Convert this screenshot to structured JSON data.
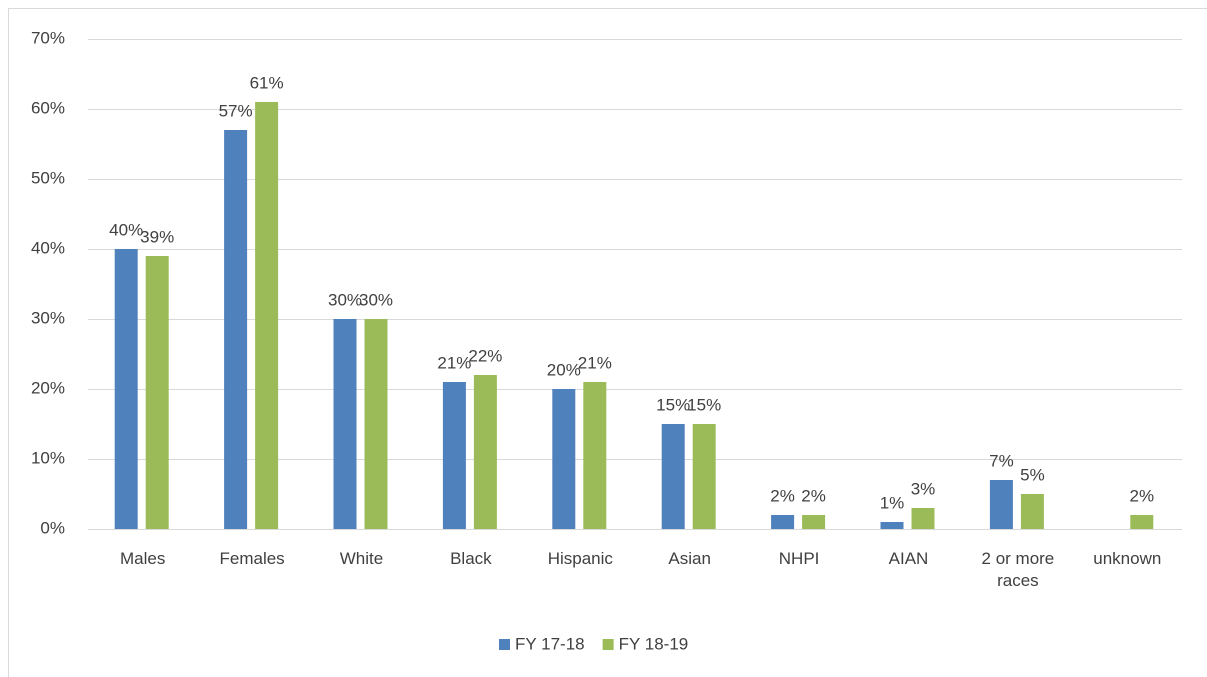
{
  "chart_data": {
    "type": "bar",
    "categories": [
      "Males",
      "Females",
      "White",
      "Black",
      "Hispanic",
      "Asian",
      "NHPI",
      "AIAN",
      "2 or more races",
      "unknown"
    ],
    "series": [
      {
        "name": "FY 17-18",
        "color": "#4f81bd",
        "values": [
          40,
          57,
          30,
          21,
          20,
          15,
          2,
          1,
          7,
          null
        ],
        "value_labels": [
          "40%",
          "57%",
          "30%",
          "21%",
          "20%",
          "15%",
          "2%",
          "1%",
          "7%",
          null
        ]
      },
      {
        "name": "FY 18-19",
        "color": "#9bbb59",
        "values": [
          39,
          61,
          30,
          22,
          21,
          15,
          2,
          3,
          5,
          2
        ],
        "value_labels": [
          "39%",
          "61%",
          "30%",
          "22%",
          "21%",
          "15%",
          "2%",
          "3%",
          "5%",
          "2%"
        ]
      }
    ],
    "ylim": [
      0,
      70
    ],
    "yticks": [
      {
        "value": 0,
        "label": "0%"
      },
      {
        "value": 10,
        "label": "10%"
      },
      {
        "value": 20,
        "label": "20%"
      },
      {
        "value": 30,
        "label": "30%"
      },
      {
        "value": 40,
        "label": "40%"
      },
      {
        "value": 50,
        "label": "50%"
      },
      {
        "value": 60,
        "label": "60%"
      },
      {
        "value": 70,
        "label": "70%"
      }
    ],
    "grid": true,
    "legend": "bottom"
  }
}
